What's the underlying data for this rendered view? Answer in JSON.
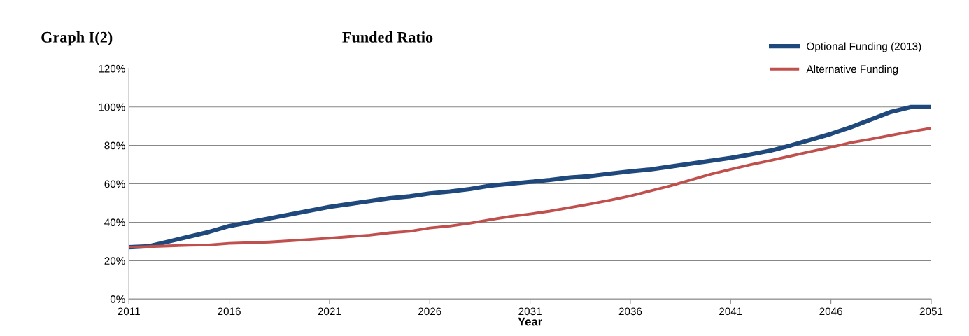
{
  "chart_data": {
    "type": "line",
    "title": "Funded Ratio",
    "xlabel": "Year",
    "annotations": [
      "Graph I(2)"
    ],
    "x": [
      2011,
      2012,
      2013,
      2014,
      2015,
      2016,
      2017,
      2018,
      2019,
      2020,
      2021,
      2022,
      2023,
      2024,
      2025,
      2026,
      2027,
      2028,
      2029,
      2030,
      2031,
      2032,
      2033,
      2034,
      2035,
      2036,
      2037,
      2038,
      2039,
      2040,
      2041,
      2042,
      2043,
      2044,
      2045,
      2046,
      2047,
      2048,
      2049,
      2050,
      2051
    ],
    "series": [
      {
        "name": "Optional Funding (2013)",
        "color": "#1f497d",
        "values": [
          27,
          27.5,
          30,
          32.5,
          35,
          38,
          40,
          42,
          44,
          46,
          48,
          49.5,
          51,
          52.5,
          53.5,
          55,
          56,
          57.3,
          59,
          60,
          61,
          62,
          63.3,
          64,
          65.3,
          66.5,
          67.5,
          69,
          70.5,
          72,
          73.5,
          75.3,
          77.3,
          80,
          83,
          86,
          89.5,
          93.5,
          97.5,
          100,
          100
        ]
      },
      {
        "name": "Alternative Funding",
        "color": "#c0504d",
        "values": [
          27,
          27.3,
          27.7,
          28,
          28.2,
          29,
          29.3,
          29.7,
          30.3,
          31,
          31.7,
          32.5,
          33.3,
          34.5,
          35.3,
          37,
          38,
          39.5,
          41.3,
          43,
          44.3,
          45.8,
          47.7,
          49.5,
          51.5,
          53.7,
          56.3,
          59,
          62,
          65,
          67.5,
          70,
          72.2,
          74.5,
          76.8,
          79,
          81.5,
          83.3,
          85.3,
          87.2,
          89
        ]
      }
    ],
    "xlim": [
      2011,
      2051
    ],
    "xticks": [
      2011,
      2016,
      2021,
      2026,
      2031,
      2036,
      2041,
      2046,
      2051
    ],
    "ylim": [
      0,
      120
    ],
    "yticks": [
      {
        "value": 0,
        "label": "0%"
      },
      {
        "value": 20,
        "label": "20%"
      },
      {
        "value": 40,
        "label": "40%"
      },
      {
        "value": 60,
        "label": "60%"
      },
      {
        "value": 80,
        "label": "80%"
      },
      {
        "value": 100,
        "label": "100%"
      },
      {
        "value": 120,
        "label": "120%"
      }
    ],
    "grid": "y",
    "legend": "top right",
    "marker": "none",
    "line_style": "solid"
  }
}
